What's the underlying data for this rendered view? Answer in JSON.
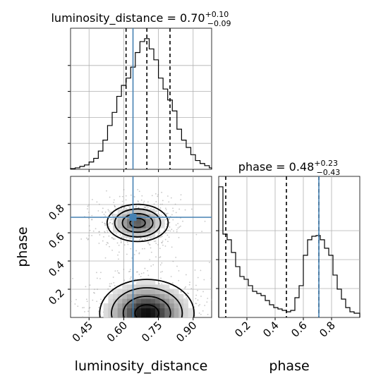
{
  "chart_data": {
    "type": "corner",
    "parameters": [
      "luminosity_distance",
      "phase"
    ],
    "axis_labels": {
      "x_left": "luminosity_distance",
      "x_right": "phase",
      "y_left": "phase"
    },
    "titles": [
      {
        "param": "luminosity_distance",
        "median": "0.70",
        "plus": "+0.10",
        "minus": "−0.09"
      },
      {
        "param": "phase",
        "median": "0.48",
        "plus": "+0.23",
        "minus": "−0.43"
      }
    ],
    "truths": {
      "luminosity_distance": 0.64,
      "phase": 0.71
    },
    "quantiles": {
      "luminosity_distance": [
        0.61,
        0.7,
        0.8
      ],
      "phase": [
        0.05,
        0.48,
        0.71
      ]
    },
    "ranges": {
      "luminosity_distance": [
        0.37,
        0.98
      ],
      "phase": [
        0.0,
        1.0
      ]
    },
    "xticks": {
      "luminosity_distance": [
        "0.45",
        "0.60",
        "0.75",
        "0.90"
      ],
      "phase": [
        "0.2",
        "0.4",
        "0.6",
        "0.8"
      ]
    },
    "yticks": {
      "phase": [
        "0.2",
        "0.4",
        "0.6",
        "0.8"
      ]
    },
    "hist_luminosity_distance": {
      "bin_edges": [
        0.37,
        0.39,
        0.41,
        0.43,
        0.45,
        0.47,
        0.49,
        0.51,
        0.53,
        0.55,
        0.57,
        0.59,
        0.61,
        0.63,
        0.65,
        0.67,
        0.69,
        0.71,
        0.73,
        0.75,
        0.77,
        0.79,
        0.81,
        0.83,
        0.85,
        0.87,
        0.89,
        0.91,
        0.93,
        0.95,
        0.97,
        0.99
      ],
      "counts": [
        1,
        2,
        4,
        6,
        10,
        15,
        25,
        40,
        60,
        78,
        100,
        115,
        125,
        140,
        160,
        175,
        179,
        165,
        150,
        125,
        110,
        95,
        80,
        55,
        40,
        30,
        20,
        12,
        8,
        5,
        2
      ]
    },
    "hist_phase": {
      "bin_edges": [
        0.0,
        0.03,
        0.06,
        0.09,
        0.12,
        0.15,
        0.18,
        0.21,
        0.24,
        0.27,
        0.3,
        0.33,
        0.36,
        0.39,
        0.42,
        0.45,
        0.48,
        0.51,
        0.54,
        0.57,
        0.6,
        0.63,
        0.66,
        0.69,
        0.72,
        0.75,
        0.78,
        0.81,
        0.84,
        0.87,
        0.9,
        0.93,
        0.96,
        1.0
      ],
      "counts": [
        185,
        118,
        110,
        92,
        72,
        58,
        54,
        45,
        37,
        34,
        31,
        24,
        18,
        14,
        12,
        10,
        8,
        10,
        28,
        45,
        88,
        110,
        115,
        116,
        110,
        98,
        88,
        60,
        40,
        26,
        14,
        8,
        6
      ]
    },
    "hist2d": {
      "grid": "on",
      "blobs": [
        {
          "x": 0.66,
          "y": 0.67,
          "sx": 0.055,
          "sy": 0.055,
          "weight": 1.0
        },
        {
          "x": 0.7,
          "y": 0.03,
          "sx": 0.085,
          "sy": 0.1,
          "weight": 1.5
        }
      ]
    }
  }
}
